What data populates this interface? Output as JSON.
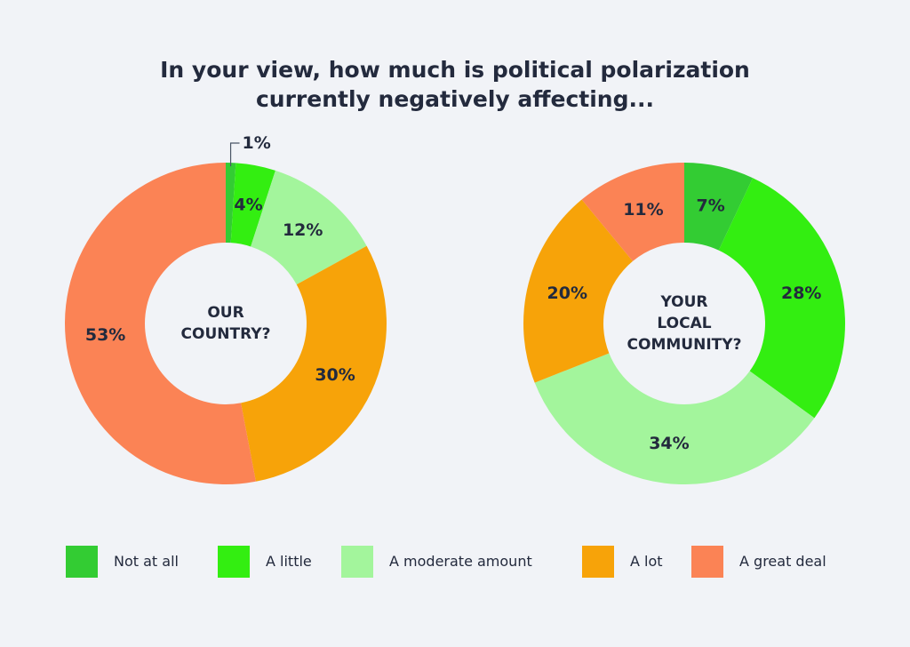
{
  "title_lines": [
    "In your view, how much is political polarization",
    "currently negatively affecting..."
  ],
  "colors": {
    "Not at all": "#33cc33",
    "A little": "#33ee11",
    "A moderate amount": "#a3f59c",
    "A lot": "#f7a309",
    "A great deal": "#fb8355",
    "background": "#f1f3f7",
    "text": "#232a3d"
  },
  "chart_data": [
    {
      "type": "pie",
      "title": "OUR COUNTRY?",
      "center_label_lines": [
        "OUR",
        "COUNTRY?"
      ],
      "categories": [
        "Not at all",
        "A little",
        "A moderate amount",
        "A lot",
        "A great deal"
      ],
      "values": [
        1,
        4,
        12,
        30,
        53
      ],
      "labels": [
        "1%",
        "4%",
        "12%",
        "30%",
        "53%"
      ]
    },
    {
      "type": "pie",
      "title": "YOUR LOCAL COMMUNITY?",
      "center_label_lines": [
        "YOUR",
        "LOCAL",
        "COMMUNITY?"
      ],
      "categories": [
        "Not at all",
        "A little",
        "A moderate amount",
        "A lot",
        "A great deal"
      ],
      "values": [
        7,
        28,
        34,
        20,
        11
      ],
      "labels": [
        "7%",
        "28%",
        "34%",
        "20%",
        "11%"
      ]
    }
  ],
  "legend": {
    "items": [
      "Not at all",
      "A little",
      "A moderate amount",
      "A lot",
      "A great deal"
    ]
  }
}
